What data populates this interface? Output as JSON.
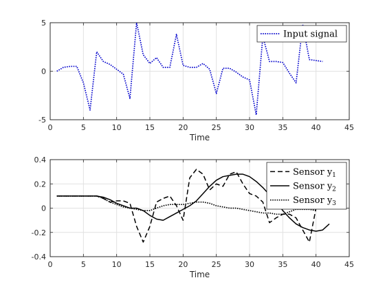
{
  "chart_data": [
    {
      "type": "line",
      "xlabel": "Time",
      "ylabel": "",
      "xlim": [
        0,
        45
      ],
      "ylim": [
        -5,
        5
      ],
      "xticks": [
        0,
        5,
        10,
        15,
        20,
        25,
        30,
        35,
        40,
        45
      ],
      "yticks": [
        -5,
        0,
        5
      ],
      "grid": true,
      "legend_position": "top-right",
      "series": [
        {
          "name": "Input signal",
          "color": "#0000cc",
          "style": "dotted",
          "x": [
            1,
            2,
            3,
            4,
            5,
            6,
            7,
            8,
            9,
            10,
            11,
            12,
            13,
            14,
            15,
            16,
            17,
            18,
            19,
            20,
            21,
            22,
            23,
            24,
            25,
            26,
            27,
            28,
            29,
            30,
            31,
            32,
            33,
            34,
            35,
            36,
            37,
            38,
            39,
            40,
            41
          ],
          "y": [
            0,
            0.4,
            0.5,
            0.5,
            -1.2,
            -4.0,
            2.0,
            1.0,
            0.7,
            0.2,
            -0.3,
            -2.8,
            5.0,
            1.7,
            0.8,
            1.4,
            0.4,
            0.4,
            3.8,
            0.6,
            0.4,
            0.4,
            0.8,
            0.2,
            -2.3,
            0.3,
            0.3,
            -0.1,
            -0.6,
            -0.9,
            -4.5,
            3.6,
            1.0,
            1.0,
            0.9,
            -0.2,
            -1.2,
            4.8,
            1.2,
            1.1,
            1.0
          ]
        }
      ]
    },
    {
      "type": "line",
      "xlabel": "Time",
      "ylabel": "",
      "xlim": [
        0,
        45
      ],
      "ylim": [
        -0.4,
        0.4
      ],
      "xticks": [
        0,
        5,
        10,
        15,
        20,
        25,
        30,
        35,
        40,
        45
      ],
      "yticks": [
        -0.4,
        -0.2,
        0,
        0.2,
        0.4
      ],
      "grid": true,
      "legend_position": "top-right",
      "series": [
        {
          "name": "Sensor y",
          "subscript": "1",
          "color": "#000000",
          "style": "dashed",
          "x": [
            1,
            2,
            3,
            4,
            5,
            6,
            7,
            8,
            9,
            10,
            11,
            12,
            13,
            14,
            15,
            16,
            17,
            18,
            19,
            20,
            21,
            22,
            23,
            24,
            25,
            26,
            27,
            28,
            29,
            30,
            31,
            32,
            33,
            34,
            35,
            36,
            37,
            38,
            39,
            40
          ],
          "y": [
            0.1,
            0.1,
            0.1,
            0.1,
            0.1,
            0.1,
            0.1,
            0.08,
            0.05,
            0.06,
            0.06,
            0.04,
            -0.15,
            -0.28,
            -0.15,
            0.05,
            0.08,
            0.1,
            0.02,
            -0.1,
            0.25,
            0.32,
            0.28,
            0.15,
            0.2,
            0.18,
            0.28,
            0.3,
            0.2,
            0.12,
            0.1,
            0.05,
            -0.12,
            -0.08,
            -0.05,
            -0.05,
            -0.08,
            -0.18,
            -0.28,
            0.0
          ]
        },
        {
          "name": "Sensor y",
          "subscript": "2",
          "color": "#000000",
          "style": "solid",
          "x": [
            1,
            2,
            3,
            4,
            5,
            6,
            7,
            8,
            9,
            10,
            11,
            12,
            13,
            14,
            15,
            16,
            17,
            18,
            19,
            20,
            21,
            22,
            23,
            24,
            25,
            26,
            27,
            28,
            29,
            30,
            31,
            32,
            33,
            34,
            35,
            36,
            37,
            38,
            39,
            40,
            41,
            42
          ],
          "y": [
            0.1,
            0.1,
            0.1,
            0.1,
            0.1,
            0.1,
            0.1,
            0.09,
            0.07,
            0.04,
            0.02,
            0.0,
            0.0,
            -0.02,
            -0.06,
            -0.09,
            -0.1,
            -0.07,
            -0.04,
            -0.01,
            0.02,
            0.06,
            0.12,
            0.18,
            0.23,
            0.26,
            0.27,
            0.28,
            0.28,
            0.26,
            0.22,
            0.17,
            0.11,
            0.05,
            -0.02,
            -0.08,
            -0.13,
            -0.16,
            -0.18,
            -0.19,
            -0.18,
            -0.13
          ]
        },
        {
          "name": "Sensor y",
          "subscript": "3",
          "color": "#000000",
          "style": "dotted",
          "x": [
            1,
            2,
            3,
            4,
            5,
            6,
            7,
            8,
            9,
            10,
            11,
            12,
            13,
            14,
            15,
            16,
            17,
            18,
            19,
            20,
            21,
            22,
            23,
            24,
            25,
            26,
            27,
            28,
            29,
            30,
            31,
            32,
            33,
            34,
            35,
            36,
            37,
            38,
            39,
            40
          ],
          "y": [
            0.1,
            0.1,
            0.1,
            0.1,
            0.1,
            0.1,
            0.1,
            0.08,
            0.05,
            0.03,
            0.01,
            0.0,
            -0.01,
            -0.02,
            -0.02,
            0.0,
            0.02,
            0.03,
            0.03,
            0.03,
            0.04,
            0.05,
            0.05,
            0.04,
            0.02,
            0.01,
            0.0,
            0.0,
            -0.01,
            -0.02,
            -0.03,
            -0.04,
            -0.04,
            -0.05,
            -0.05,
            -0.03,
            -0.01,
            -0.01,
            -0.01,
            -0.02
          ]
        }
      ]
    }
  ]
}
